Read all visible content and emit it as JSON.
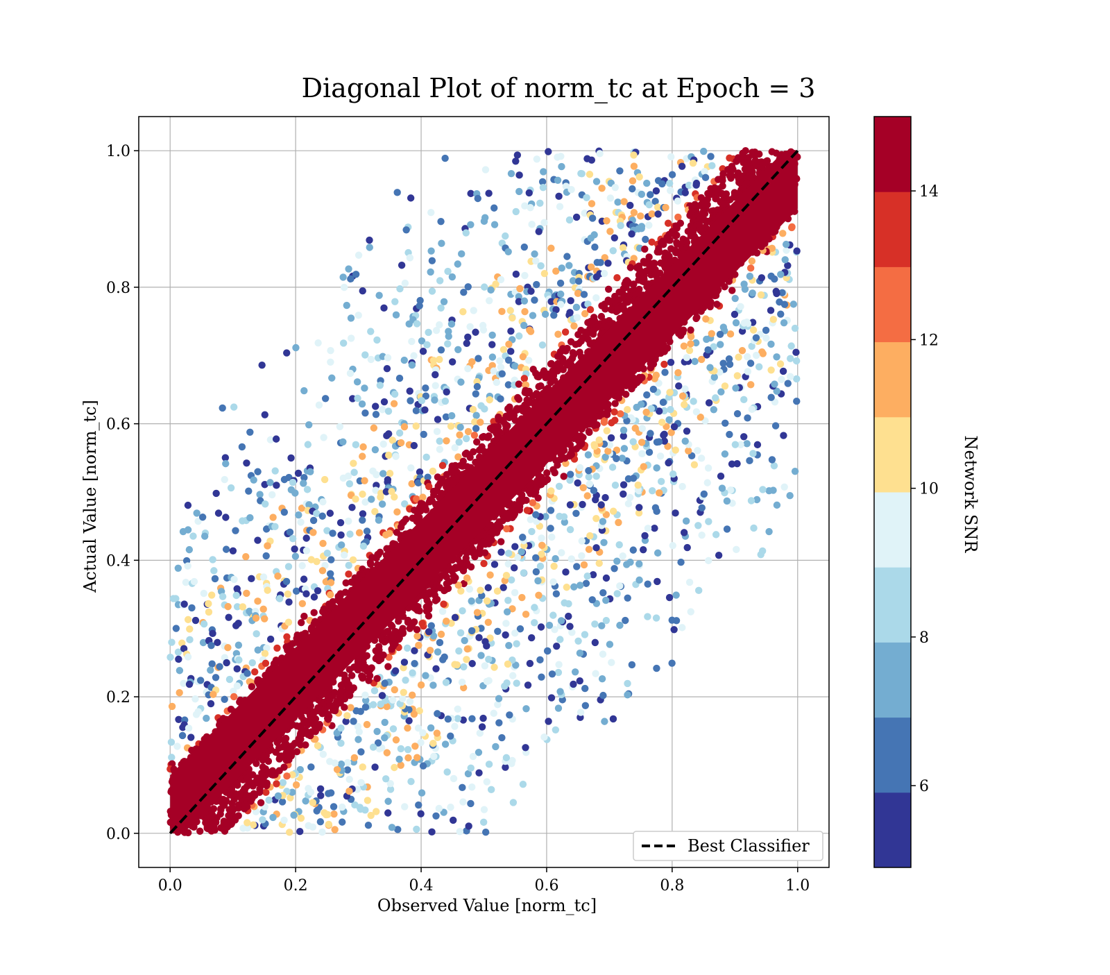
{
  "chart_data": {
    "type": "scatter",
    "title": "Diagonal Plot of norm_tc at Epoch = 3",
    "xlabel": "Observed Value [norm_tc]",
    "ylabel": "Actual Value [norm_tc]",
    "xlim": [
      -0.05,
      1.05
    ],
    "ylim": [
      -0.05,
      1.05
    ],
    "x_ticks": [
      0.0,
      0.2,
      0.4,
      0.6,
      0.8,
      1.0
    ],
    "y_ticks": [
      0.0,
      0.2,
      0.4,
      0.6,
      0.8,
      1.0
    ],
    "x_tick_labels": [
      "0.0",
      "0.2",
      "0.4",
      "0.6",
      "0.8",
      "1.0"
    ],
    "y_tick_labels": [
      "0.0",
      "0.2",
      "0.4",
      "0.6",
      "0.8",
      "1.0"
    ],
    "grid": true,
    "reference_line": {
      "name": "Best Classifier",
      "style": "dashed",
      "color": "#000000",
      "x": [
        0.0,
        1.0
      ],
      "y": [
        0.0,
        1.0
      ]
    },
    "legend": {
      "position": "lower-right",
      "entries": [
        "Best Classifier"
      ]
    },
    "colorbar": {
      "label": "Network SNR",
      "min": 4.9,
      "max": 15.0,
      "ticks": [
        6,
        8,
        10,
        12,
        14
      ],
      "tick_labels": [
        "6",
        "8",
        "10",
        "12",
        "14"
      ],
      "colors": [
        "#313695",
        "#4575b4",
        "#74add1",
        "#abd9e9",
        "#e0f3f8",
        "#fee090",
        "#fdae61",
        "#f46d43",
        "#d73027",
        "#a50026"
      ]
    },
    "distribution": {
      "description_note": "",
      "high_snr_band_halfwidth": 0.085,
      "high_snr_color": "#a50026",
      "x_range": [
        0.0,
        1.0
      ],
      "y_range": [
        0.0,
        1.0
      ]
    }
  }
}
